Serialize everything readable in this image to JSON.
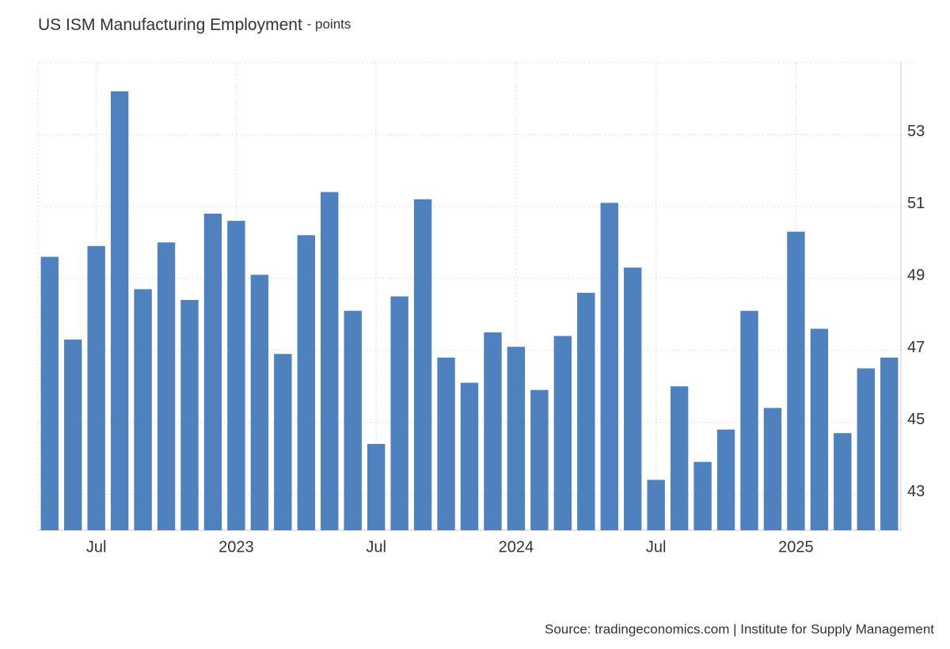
{
  "chart_data": {
    "type": "bar",
    "title": "US ISM Manufacturing Employment",
    "subtitle": "- points",
    "source": "Source: tradingeconomics.com | Institute for Supply Management",
    "categories": [
      null,
      null,
      "Jul",
      null,
      null,
      null,
      null,
      null,
      "2023",
      null,
      null,
      null,
      null,
      null,
      "Jul",
      null,
      null,
      null,
      null,
      null,
      "2024",
      null,
      null,
      null,
      null,
      null,
      "Jul",
      null,
      null,
      null,
      null,
      null,
      "2025",
      null,
      null,
      null,
      null
    ],
    "values": [
      49.6,
      47.3,
      49.9,
      54.2,
      48.7,
      50.0,
      48.4,
      50.8,
      50.6,
      49.1,
      46.9,
      50.2,
      51.4,
      48.1,
      44.4,
      48.5,
      51.2,
      46.8,
      46.1,
      47.5,
      47.1,
      45.9,
      47.4,
      48.6,
      51.1,
      49.3,
      43.4,
      46.0,
      43.9,
      44.8,
      48.1,
      45.4,
      50.3,
      47.6,
      44.7,
      46.5,
      46.8
    ],
    "color": "#4e81bd",
    "ylim": [
      42,
      55
    ],
    "yticks": [
      43,
      45,
      47,
      49,
      51,
      53
    ],
    "grid": true
  }
}
